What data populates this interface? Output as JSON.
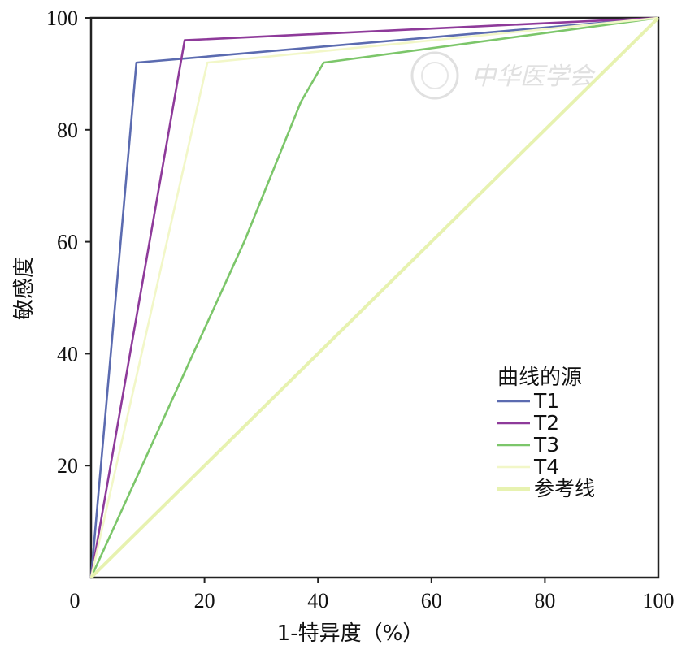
{
  "chart_data": {
    "type": "line",
    "xlabel": "1-特异度（%）",
    "ylabel": "敏感度",
    "xlim": [
      0,
      100
    ],
    "ylim": [
      0,
      100
    ],
    "x_ticks": [
      "0",
      "20",
      "40",
      "60",
      "80",
      "100"
    ],
    "y_ticks": [
      "20",
      "40",
      "60",
      "80",
      "100"
    ],
    "grid": false,
    "legend_title": "曲线的源",
    "legend_position": "lower-right",
    "series": [
      {
        "name": "T1",
        "color": "#5b6bb0",
        "x": [
          0,
          8,
          100
        ],
        "y": [
          0,
          92,
          100
        ]
      },
      {
        "name": "T2",
        "color": "#8e3a9a",
        "x": [
          0,
          16.5,
          100
        ],
        "y": [
          0,
          96,
          100
        ]
      },
      {
        "name": "T3",
        "color": "#7cc66a",
        "x": [
          0,
          27,
          37,
          41,
          100
        ],
        "y": [
          0,
          60,
          85,
          92,
          100
        ]
      },
      {
        "name": "T4",
        "color": "#f2f7c8",
        "x": [
          0,
          20.5,
          100
        ],
        "y": [
          0,
          92,
          100
        ]
      },
      {
        "name": "参考线",
        "color": "#e7f2b0",
        "x": [
          0,
          100
        ],
        "y": [
          0,
          100
        ]
      }
    ],
    "watermark": "中华医学会"
  }
}
